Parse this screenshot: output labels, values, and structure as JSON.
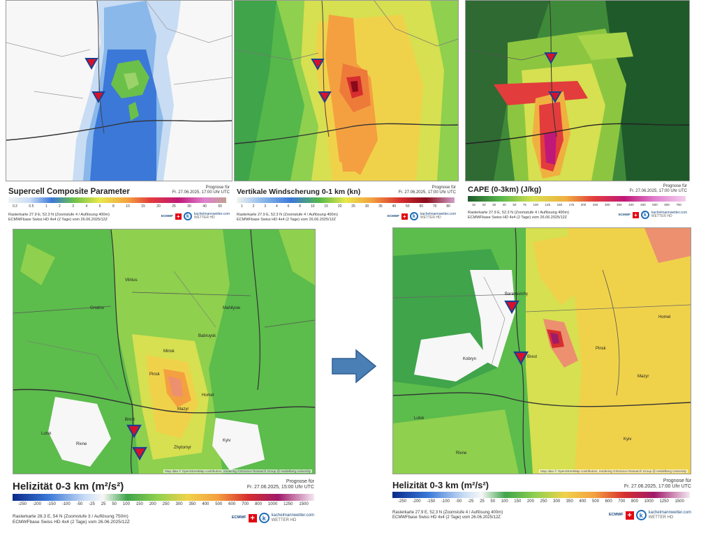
{
  "panels": {
    "scp": {
      "title": "Supercell Composite Parameter",
      "prognose_label": "Prognose für",
      "valid_time": "Fr. 27.06.2025, 17:00 Uhr UTC",
      "scale_ticks": [
        "0.2",
        "0.5",
        "1",
        "2",
        "3",
        "4",
        "6",
        "8",
        "10",
        "15",
        "20",
        "25",
        "30",
        "40",
        "50"
      ],
      "meta_line1": "Rasterkarte 27.9 E, 52.3 N (Zoomstufe 4 / Auflösung 400m)",
      "meta_line2": "ECMWFbase Swiss HD 4x4 (2 Tage) vom 26.06.2025/12Z"
    },
    "shear": {
      "title": "Vertikale Windscherung 0-1 km (kn)",
      "prognose_label": "Prognose für",
      "valid_time": "Fr. 27.06.2025, 17:00 Uhr UTC",
      "scale_ticks": [
        "1",
        "2",
        "3",
        "4",
        "6",
        "8",
        "10",
        "15",
        "20",
        "25",
        "30",
        "35",
        "40",
        "50",
        "60",
        "70",
        "80"
      ],
      "meta_line1": "Rasterkarte 27.9 E, 52.3 N (Zoomstufe 4 / Auflösung 400m)",
      "meta_line2": "ECMWFbase Swiss HD 4x4 (2 Tage) vom 26.06.2025/12Z"
    },
    "cape": {
      "title": "CAPE (0-3km) (J/kg)",
      "prognose_label": "Prognose für",
      "valid_time": "Fr. 27.06.2025, 17:00 Uhr UTC",
      "scale_ticks": [
        "10",
        "20",
        "30",
        "40",
        "50",
        "75",
        "100",
        "125",
        "150",
        "175",
        "200",
        "250",
        "300",
        "350",
        "400",
        "450",
        "500",
        "600",
        "700"
      ],
      "meta_line1": "Rasterkarte 27.9 E, 52.3 N (Zoomstufe 4 / Auflösung 400m)",
      "meta_line2": "ECMWFbase Swiss HD 4x4 (2 Tage) vom 26.06.2025/12Z"
    },
    "heli_left": {
      "title": "Helizität 0-3 km (m²/s²)",
      "prognose_label": "Prognose für",
      "valid_time": "Fr. 27.06.2025, 15:00 Uhr UTC",
      "scale_ticks": [
        "-250",
        "-200",
        "-150",
        "-100",
        "-50",
        "-25",
        "25",
        "50",
        "100",
        "150",
        "200",
        "250",
        "300",
        "350",
        "400",
        "500",
        "600",
        "700",
        "800",
        "1000",
        "1250",
        "1500"
      ],
      "meta_line1": "Rasterkarte 28.3 E, 54 N (Zoomstufe 3 / Auflösung 750m)",
      "meta_line2": "ECMWFbase Swiss HD 4x4 (2 Tage) vom 26.06.2025/12Z"
    },
    "heli_right": {
      "title": "Helizität 0-3 km (m²/s²)",
      "prognose_label": "Prognose für",
      "valid_time": "Fr. 27.06.2025, 17:00 Uhr UTC",
      "scale_ticks": [
        "-250",
        "-200",
        "-150",
        "-100",
        "-50",
        "-25",
        "25",
        "50",
        "100",
        "150",
        "200",
        "250",
        "300",
        "350",
        "400",
        "500",
        "600",
        "700",
        "800",
        "1000",
        "1250",
        "1500"
      ],
      "meta_line1": "Rasterkarte 27.9 E, 52.3 N (Zoomstufe 4 / Auflösung 400m)",
      "meta_line2": "ECMWFbase Swiss HD 4x4 (2 Tage) vom 26.06.2025/12Z"
    }
  },
  "logo": {
    "brand": "kachelmannwetter.com",
    "brand_sub": "WETTER HD",
    "ecmwf": "ECMWF",
    "flag_symbol": "+",
    "k_letter": "k"
  },
  "attribution": "Map data © OpenStreetMap contributors, rendering GIScience Research Group @ Heidelberg University",
  "cities": {
    "left_map": [
      "Minsk",
      "Homel",
      "Brest",
      "Pinsk",
      "Kyiv",
      "Zhytomyr",
      "Vilnius",
      "Grodno",
      "Mahilyow",
      "Babruysk",
      "Mazyr",
      "Rivne",
      "Lutsk"
    ],
    "right_map": [
      "Brest",
      "Pinsk",
      "Kobryn",
      "Mazyr",
      "Homel",
      "Kyiv",
      "Lutsk",
      "Rivne",
      "Baranavichy"
    ]
  },
  "colors": {
    "marker_fill": "#d8102a",
    "marker_stroke": "#1d3f8f",
    "arrow": "#4a7fb5"
  }
}
